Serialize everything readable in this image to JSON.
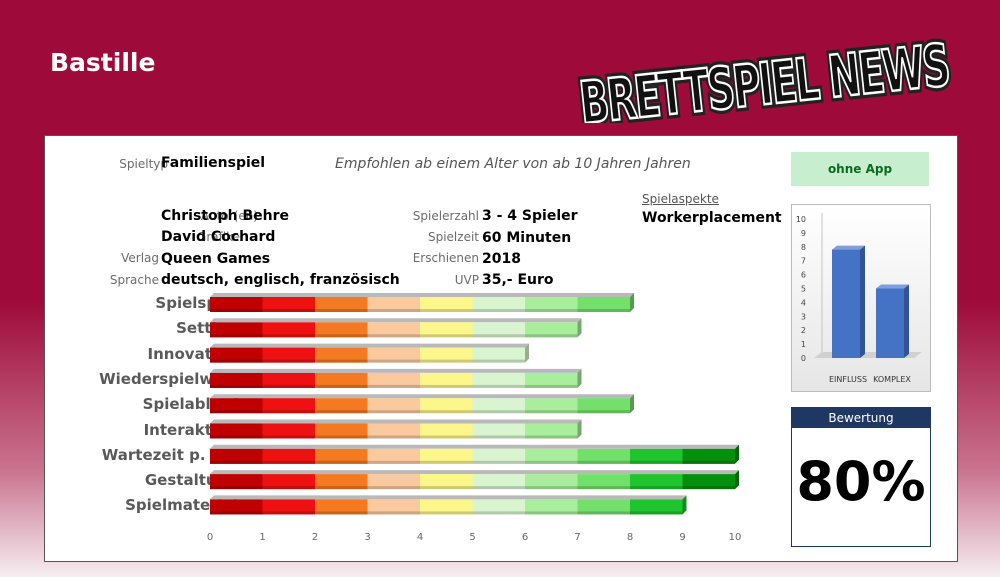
{
  "title": "Bastille",
  "logo_text": "BRETTSPIEL NEWS",
  "info": {
    "spieltyp_label": "Spieltyp",
    "spieltyp": "Familienspiel",
    "age_text": "Empfohlen ab einem Alter von ab 10 Jahren Jahren",
    "autor_label": "Autor(en)",
    "autor": "Christoph Behre",
    "grafiker_label": "Grafiker",
    "grafiker": "David Cochard",
    "verlag_label": "Verlag",
    "verlag": "Queen Games",
    "sprache_label": "Sprache",
    "sprache": "deutsch, englisch, französisch",
    "spielerzahl_label": "Spielerzahl",
    "spielerzahl": "3 - 4 Spieler",
    "spielzeit_label": "Spielzeit",
    "spielzeit": "60 Minuten",
    "erschienen_label": "Erschienen",
    "erschienen": "2018",
    "uvp_label": "UVP",
    "uvp": "35,- Euro",
    "aspects_label": "Spielaspekte",
    "aspects": "Workerplacement"
  },
  "app_status": "ohne App",
  "rating": {
    "header": "Bewertung",
    "value": "80%"
  },
  "chart_data": [
    {
      "type": "bar",
      "orientation": "horizontal",
      "categories": [
        "Spielspaß",
        "Setting",
        "Innovation",
        "Wiederspielwert",
        "Spielablauf",
        "Interaktion",
        "Wartezeit p. Sp.",
        "Gestaltung",
        "Spielmaterial"
      ],
      "values": [
        8,
        7,
        6,
        7,
        8,
        7,
        10,
        10,
        9
      ],
      "xlim": [
        0,
        10
      ],
      "xticks": [
        "0",
        "1",
        "2",
        "3",
        "4",
        "5",
        "6",
        "7",
        "8",
        "9",
        "10"
      ],
      "segment_colors": [
        "#c00000",
        "#ee1111",
        "#f47920",
        "#fbc99e",
        "#fdf68a",
        "#d8f5cf",
        "#a9ee9d",
        "#73e06b",
        "#1fc42e",
        "#068f0e"
      ]
    },
    {
      "type": "bar",
      "categories": [
        "EINFLUSS",
        "KOMPLEX"
      ],
      "values": [
        7.8,
        5
      ],
      "ylim": [
        0,
        10
      ],
      "yticks": [
        "0",
        "1",
        "2",
        "3",
        "4",
        "5",
        "6",
        "7",
        "8",
        "9",
        "10"
      ],
      "color": "#4472c4"
    }
  ]
}
